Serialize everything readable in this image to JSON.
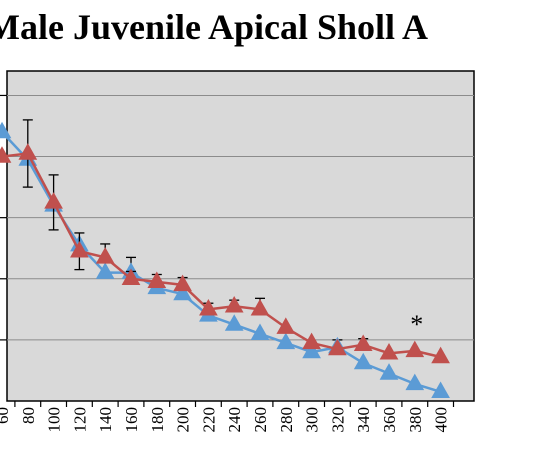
{
  "chart_data": {
    "type": "line",
    "title": "Male Juvenile Apical Sholl A",
    "x": [
      60,
      80,
      100,
      120,
      140,
      160,
      180,
      200,
      220,
      240,
      260,
      280,
      300,
      320,
      340,
      360,
      380,
      400
    ],
    "x_tick_labels": [
      "60",
      "80",
      "100",
      "120",
      "140",
      "160",
      "180",
      "200",
      "220",
      "240",
      "260",
      "280",
      "300",
      "320",
      "340",
      "360",
      "380",
      "400"
    ],
    "ylim": [
      0,
      5.4
    ],
    "y_gridlines": [
      1,
      2,
      3,
      4,
      5
    ],
    "grid": true,
    "series": [
      {
        "color": "#5b9bd5",
        "marker": "triangle",
        "values": [
          4.4,
          3.95,
          3.2,
          2.55,
          2.1,
          2.1,
          1.85,
          1.75,
          1.4,
          1.25,
          1.1,
          0.95,
          0.8,
          0.88,
          0.62,
          0.45,
          0.28,
          0.15
        ],
        "errors": [
          0.0,
          0.0,
          0.0,
          0.0,
          0.18,
          0.25,
          0.0,
          0.0,
          0.0,
          0.0,
          0.0,
          0.0,
          0.0,
          0.12,
          0.0,
          0.0,
          0.0,
          0.0
        ]
      },
      {
        "color": "#c0504d",
        "marker": "triangle",
        "values": [
          4.0,
          4.05,
          3.25,
          2.45,
          2.35,
          2.0,
          1.95,
          1.9,
          1.5,
          1.55,
          1.5,
          1.2,
          0.95,
          0.85,
          0.92,
          0.78,
          0.82,
          0.72
        ],
        "errors": [
          0.0,
          0.55,
          0.45,
          0.3,
          0.22,
          0.12,
          0.12,
          0.12,
          0.1,
          0.1,
          0.18,
          0.0,
          0.0,
          0.0,
          0.1,
          0.0,
          0.0,
          0.0
        ],
        "errors_minus": [
          0.0,
          0.55,
          0.45,
          0.3,
          0.0,
          0.0,
          0.0,
          0.0,
          0.0,
          0.0,
          0.0,
          0.0,
          0.0,
          0.0,
          0.0,
          0.0,
          0.0,
          0.0
        ]
      }
    ],
    "annotations": [
      {
        "text": "*",
        "x": 380
      }
    ]
  }
}
